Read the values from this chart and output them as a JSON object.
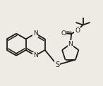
{
  "bg_color": "#eeeae4",
  "line_color": "#1a1a1a",
  "lw": 1.3,
  "fs": 6.5,
  "figsize": [
    1.46,
    1.22
  ],
  "dpi": 100,
  "xlim": [
    0.0,
    1.0
  ],
  "ylim": [
    0.08,
    0.88
  ]
}
